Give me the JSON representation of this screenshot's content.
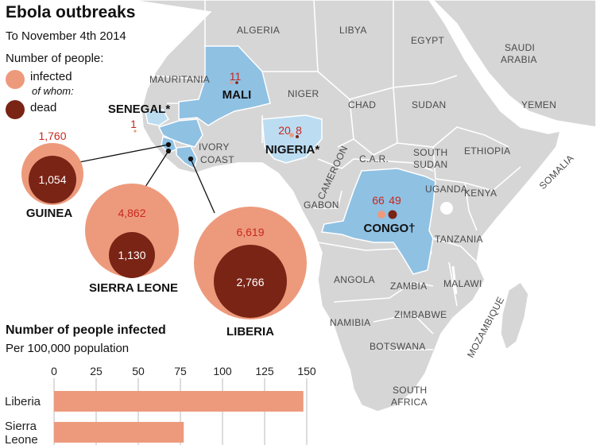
{
  "title": "Ebola outbreaks",
  "subtitle": "To November 4th 2014",
  "legend": {
    "title": "Number of people:",
    "infected": "infected",
    "of_whom": "of whom:",
    "dead": "dead",
    "infected_color": "#ed9a7c",
    "dead_color": "#7a2416"
  },
  "colors": {
    "land": "#d6d6d6",
    "border": "#ffffff",
    "highlight": "#8fc1e3",
    "highlight_light": "#bcdcf1",
    "sea": "#ffffff",
    "bar": "#ed9a7c"
  },
  "countries": {
    "algeria": "ALGERIA",
    "libya": "LIBYA",
    "egypt": "EGYPT",
    "saudi1": "SAUDI",
    "saudi2": "ARABIA",
    "yemen": "YEMEN",
    "mauritania": "MAURITANIA",
    "niger": "NIGER",
    "chad": "CHAD",
    "sudan": "SUDAN",
    "ethiopia": "ETHIOPIA",
    "south_sudan1": "SOUTH",
    "south_sudan2": "SUDAN",
    "somalia": "SOMALIA",
    "car": "C.A.R.",
    "cameroon": "CAMEROON",
    "gabon": "GABON",
    "uganda": "UGANDA",
    "kenya": "KENYA",
    "tanzania": "TANZANIA",
    "angola": "ANGOLA",
    "zambia": "ZAMBIA",
    "malawi": "MALAWI",
    "namibia": "NAMIBIA",
    "zimbabwe": "ZIMBABWE",
    "botswana": "BOTSWANA",
    "mozambique": "MOZAMBIQUE",
    "south_africa1": "SOUTH",
    "south_africa2": "AFRICA",
    "ivory1": "IVORY",
    "ivory2": "COAST"
  },
  "outbreaks": [
    {
      "name": "GUINEA",
      "infected": "1,760",
      "dead": "1,054",
      "infected_value": 1760,
      "dead_value": 1054
    },
    {
      "name": "SIERRA LEONE",
      "infected": "4,862",
      "dead": "1,130",
      "infected_value": 4862,
      "dead_value": 1130
    },
    {
      "name": "LIBERIA",
      "infected": "6,619",
      "dead": "2,766",
      "infected_value": 6619,
      "dead_value": 2766
    },
    {
      "name": "MALI",
      "infected": "1",
      "dead": "1",
      "infected_value": 1,
      "dead_value": 1
    },
    {
      "name": "SENEGAL*",
      "infected": "1",
      "infected_value": 1
    },
    {
      "name": "NIGERIA*",
      "infected": "20",
      "dead": "8",
      "infected_value": 20,
      "dead_value": 8
    },
    {
      "name": "CONGO†",
      "infected": "66",
      "dead": "49",
      "infected_value": 66,
      "dead_value": 49
    }
  ],
  "bar_title": "Number of people infected",
  "bar_subtitle": "Per 100,000 population",
  "chart_data": {
    "type": "bar",
    "orientation": "horizontal",
    "title": "Number of people infected",
    "subtitle": "Per 100,000 population",
    "categories": [
      "Liberia",
      "Sierra Leone"
    ],
    "category_lines": [
      [
        "Liberia"
      ],
      [
        "Sierra",
        "Leone"
      ]
    ],
    "values": [
      148,
      77
    ],
    "xlim": [
      0,
      150
    ],
    "ticks": [
      0,
      25,
      50,
      75,
      100,
      125,
      150
    ],
    "grid": true
  }
}
